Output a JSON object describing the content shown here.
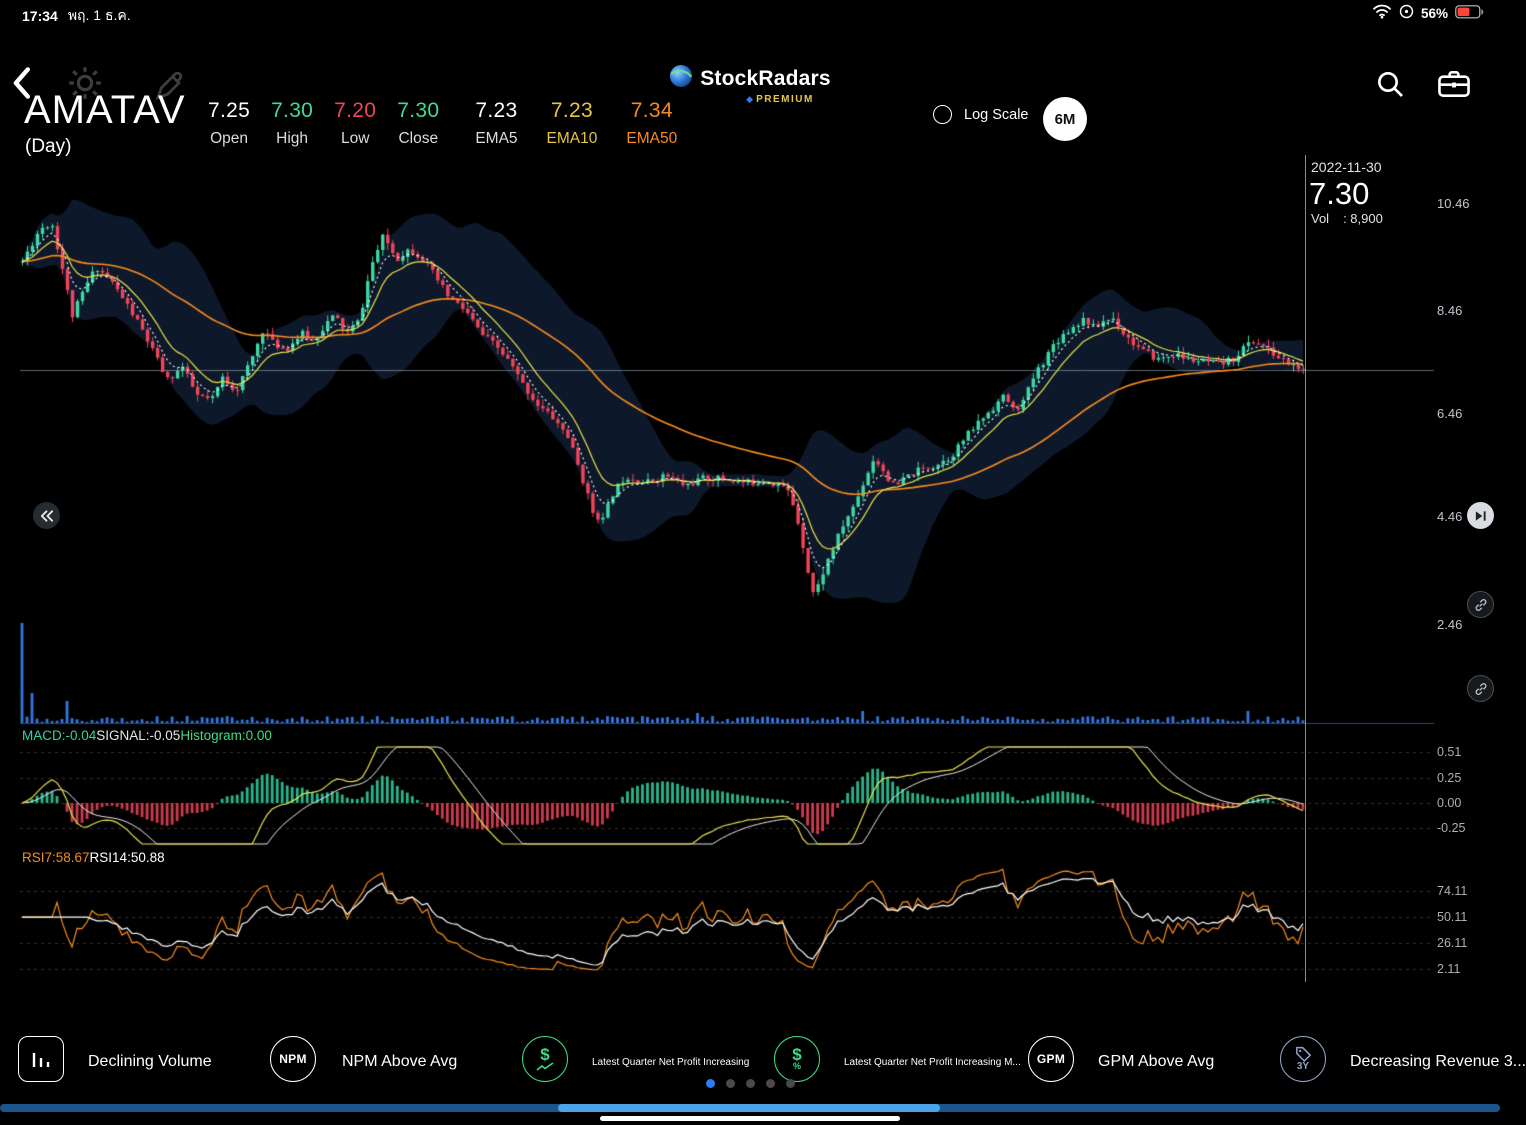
{
  "status_bar": {
    "time": "17:34",
    "date": "พฤ. 1 ธ.ค.",
    "battery_percent": "56%"
  },
  "navbar": {
    "app_name": "StockRadars",
    "premium_label": "PREMIUM"
  },
  "header": {
    "symbol": "AMATAV",
    "timeframe": "(Day)",
    "quote_fields": [
      {
        "value": "7.25",
        "label": "Open"
      },
      {
        "value": "7.30",
        "label": "High"
      },
      {
        "value": "7.20",
        "label": "Low"
      },
      {
        "value": "7.30",
        "label": "Close"
      },
      {
        "value": "7.23",
        "label": "EMA5"
      },
      {
        "value": "7.23",
        "label": "EMA10"
      },
      {
        "value": "7.34",
        "label": "EMA50"
      }
    ],
    "log_scale_label": "Log Scale",
    "range_button_label": "6M"
  },
  "crosshair": {
    "date": "2022-11-30",
    "price": "7.30",
    "volume_label": "Vol",
    "volume_value": ": 8,900"
  },
  "price_axis_labels": [
    "10.46",
    "8.46",
    "6.46",
    "4.46",
    "2.46"
  ],
  "panels": {
    "macd": {
      "macd_label": "MACD:-0.04",
      "signal_label": "SIGNAL:-0.05",
      "histogram_label": "Histogram:0.00",
      "axis_labels": [
        "0.51",
        "0.25",
        "0.00",
        "-0.25"
      ]
    },
    "rsi": {
      "rsi7_label": "RSI7:58.67",
      "rsi14_label": "RSI14:50.88",
      "axis_labels": [
        "74.11",
        "50.11",
        "26.11",
        "2.11"
      ]
    }
  },
  "chart_data": {
    "type": "candlestick",
    "symbol": "AMATAV",
    "interval": "Day",
    "range": "6M",
    "last_date": "2022-11-30",
    "last_close": 7.3,
    "last_volume": 8900,
    "open": 7.25,
    "high": 7.3,
    "low": 7.2,
    "close": 7.3,
    "ema5": 7.23,
    "ema10": 7.23,
    "ema50": 7.34,
    "macd": -0.04,
    "signal": -0.05,
    "histogram": 0.0,
    "rsi7": 58.67,
    "rsi14": 50.88,
    "price_axis_values": [
      10.46,
      8.46,
      6.46,
      4.46,
      2.46
    ],
    "macd_axis_values": [
      0.51,
      0.25,
      0.0,
      -0.25
    ],
    "rsi_axis_values": [
      74.11,
      50.11,
      26.11,
      2.11
    ],
    "candle_count": 257,
    "seed": 11,
    "noise": 0.14,
    "colors": {
      "up": "#3fd9a4",
      "down": "#f0455a",
      "ema5": "#ffffff",
      "ema10": "#e8e04a",
      "ema50": "#f78c1e",
      "volume": "#3b82f6",
      "band": "rgba(45,90,150,0.28)",
      "macd_line": "#e8e04a",
      "signal_line": "#e8e8e8",
      "hist_pos": "#2fd6a3",
      "hist_neg": "#f0455a",
      "rsi7": "#f78c1e",
      "rsi14": "#ffffff"
    },
    "price_path": [
      [
        0,
        9.4
      ],
      [
        0.014,
        10.05
      ],
      [
        0.023,
        10.15
      ],
      [
        0.031,
        9.3
      ],
      [
        0.039,
        8.35
      ],
      [
        0.051,
        9.0
      ],
      [
        0.058,
        9.3
      ],
      [
        0.07,
        9.0
      ],
      [
        0.082,
        8.55
      ],
      [
        0.093,
        8.1
      ],
      [
        0.105,
        7.5
      ],
      [
        0.113,
        7.1
      ],
      [
        0.125,
        7.35
      ],
      [
        0.136,
        6.8
      ],
      [
        0.148,
        6.7
      ],
      [
        0.156,
        7.15
      ],
      [
        0.167,
        6.9
      ],
      [
        0.179,
        7.5
      ],
      [
        0.188,
        8.1
      ],
      [
        0.196,
        7.8
      ],
      [
        0.206,
        7.7
      ],
      [
        0.218,
        8.0
      ],
      [
        0.227,
        7.85
      ],
      [
        0.237,
        8.2
      ],
      [
        0.244,
        8.35
      ],
      [
        0.253,
        8.0
      ],
      [
        0.263,
        8.25
      ],
      [
        0.272,
        9.3
      ],
      [
        0.282,
        9.9
      ],
      [
        0.292,
        9.45
      ],
      [
        0.302,
        9.65
      ],
      [
        0.311,
        9.5
      ],
      [
        0.321,
        9.15
      ],
      [
        0.333,
        8.7
      ],
      [
        0.346,
        8.45
      ],
      [
        0.358,
        8.0
      ],
      [
        0.37,
        7.75
      ],
      [
        0.38,
        7.45
      ],
      [
        0.391,
        7.0
      ],
      [
        0.403,
        6.6
      ],
      [
        0.415,
        6.35
      ],
      [
        0.426,
        6.0
      ],
      [
        0.437,
        5.2
      ],
      [
        0.445,
        4.55
      ],
      [
        0.453,
        4.38
      ],
      [
        0.461,
        4.9
      ],
      [
        0.471,
        5.25
      ],
      [
        0.486,
        5.1
      ],
      [
        0.502,
        5.25
      ],
      [
        0.517,
        5.05
      ],
      [
        0.533,
        5.2
      ],
      [
        0.549,
        5.18
      ],
      [
        0.564,
        5.1
      ],
      [
        0.58,
        5.15
      ],
      [
        0.593,
        5.05
      ],
      [
        0.599,
        4.9
      ],
      [
        0.605,
        4.4
      ],
      [
        0.612,
        3.6
      ],
      [
        0.616,
        2.95
      ],
      [
        0.621,
        3.1
      ],
      [
        0.627,
        3.5
      ],
      [
        0.634,
        3.9
      ],
      [
        0.642,
        4.35
      ],
      [
        0.65,
        4.7
      ],
      [
        0.658,
        5.2
      ],
      [
        0.665,
        5.6
      ],
      [
        0.673,
        5.3
      ],
      [
        0.681,
        5.0
      ],
      [
        0.689,
        5.2
      ],
      [
        0.7,
        5.35
      ],
      [
        0.712,
        5.45
      ],
      [
        0.724,
        5.6
      ],
      [
        0.735,
        5.95
      ],
      [
        0.747,
        6.3
      ],
      [
        0.759,
        6.6
      ],
      [
        0.767,
        6.8
      ],
      [
        0.774,
        6.5
      ],
      [
        0.782,
        6.7
      ],
      [
        0.79,
        7.2
      ],
      [
        0.798,
        7.5
      ],
      [
        0.805,
        7.8
      ],
      [
        0.813,
        8.0
      ],
      [
        0.821,
        8.15
      ],
      [
        0.829,
        8.3
      ],
      [
        0.837,
        8.1
      ],
      [
        0.844,
        8.25
      ],
      [
        0.852,
        8.3
      ],
      [
        0.86,
        8.0
      ],
      [
        0.868,
        7.8
      ],
      [
        0.875,
        7.65
      ],
      [
        0.887,
        7.5
      ],
      [
        0.899,
        7.6
      ],
      [
        0.91,
        7.5
      ],
      [
        0.922,
        7.45
      ],
      [
        0.934,
        7.4
      ],
      [
        0.945,
        7.5
      ],
      [
        0.952,
        7.7
      ],
      [
        0.959,
        7.85
      ],
      [
        0.967,
        7.8
      ],
      [
        0.974,
        7.65
      ],
      [
        0.982,
        7.5
      ],
      [
        0.99,
        7.4
      ],
      [
        1,
        7.3
      ]
    ],
    "volume_spikes": [
      [
        0,
        100
      ],
      [
        2,
        30
      ],
      [
        9,
        22
      ],
      [
        135,
        10
      ],
      [
        168,
        12
      ],
      [
        245,
        12
      ]
    ]
  },
  "radar_bar": {
    "badges": [
      {
        "label": "Declining Volume"
      },
      {
        "icon_text": "NPM",
        "label": "NPM Above Avg"
      },
      {
        "label": "Latest Quarter Net Profit Increasing"
      },
      {
        "label": "Latest Quarter Net Profit Increasing M..."
      },
      {
        "icon_text": "GPM",
        "label": "GPM Above Avg"
      },
      {
        "icon_text": "3Y",
        "label": "Decreasing Revenue 3..."
      }
    ],
    "page_count": 5,
    "active_page": 1
  }
}
